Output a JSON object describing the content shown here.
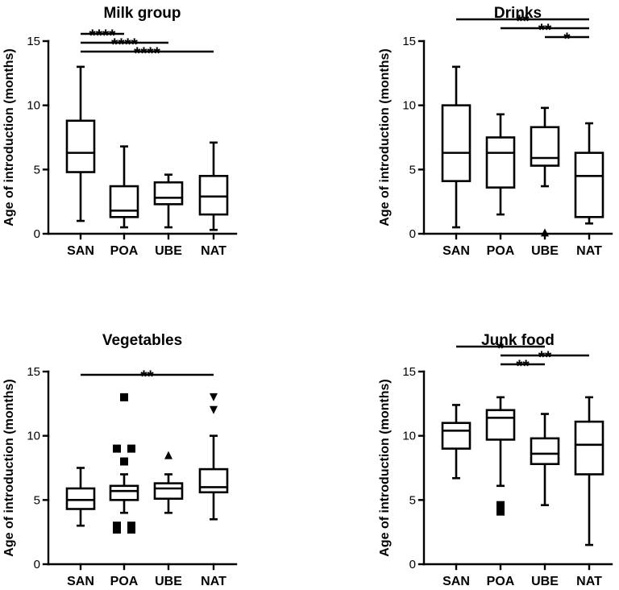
{
  "chart_data": [
    {
      "type": "boxplot",
      "title": "Milk group",
      "ylabel": "Age of introduction (months)",
      "categories": [
        "SAN",
        "POA",
        "UBE",
        "NAT"
      ],
      "ylim": [
        0,
        15
      ],
      "yticks": [
        0,
        5,
        10,
        15
      ],
      "boxes": [
        {
          "min": 1.0,
          "q1": 4.8,
          "median": 6.3,
          "q3": 8.8,
          "max": 13.0,
          "outliers": []
        },
        {
          "min": 0.5,
          "q1": 1.3,
          "median": 1.8,
          "q3": 3.7,
          "max": 6.8,
          "outliers": []
        },
        {
          "min": 0.5,
          "q1": 2.3,
          "median": 2.8,
          "q3": 4.0,
          "max": 4.6,
          "outliers": []
        },
        {
          "min": 0.3,
          "q1": 1.5,
          "median": 2.9,
          "q3": 4.5,
          "max": 7.1,
          "outliers": []
        }
      ],
      "significance": [
        {
          "from": 0,
          "to": 1,
          "label": "****",
          "level": 0
        },
        {
          "from": 0,
          "to": 2,
          "label": "****",
          "level": 1
        },
        {
          "from": 0,
          "to": 3,
          "label": "****",
          "level": 2
        }
      ]
    },
    {
      "type": "boxplot",
      "title": "Drinks",
      "ylabel": "Age of introduction (months)",
      "categories": [
        "SAN",
        "POA",
        "UBE",
        "NAT"
      ],
      "ylim": [
        0,
        15
      ],
      "yticks": [
        0,
        5,
        10,
        15
      ],
      "boxes": [
        {
          "min": 0.5,
          "q1": 4.1,
          "median": 6.3,
          "q3": 10.0,
          "max": 13.0,
          "outliers": []
        },
        {
          "min": 1.5,
          "q1": 3.6,
          "median": 6.3,
          "q3": 7.5,
          "max": 9.3,
          "outliers": []
        },
        {
          "min": 3.7,
          "q1": 5.3,
          "median": 5.9,
          "q3": 8.3,
          "max": 9.8,
          "outliers": [
            {
              "value": 0.1,
              "marker": "triangle-up"
            }
          ]
        },
        {
          "min": 0.8,
          "q1": 1.3,
          "median": 4.5,
          "q3": 6.3,
          "max": 8.6,
          "outliers": []
        }
      ],
      "significance": [
        {
          "from": 2,
          "to": 3,
          "label": "*",
          "level": 0
        },
        {
          "from": 1,
          "to": 3,
          "label": "**",
          "level": 1
        },
        {
          "from": 0,
          "to": 3,
          "label": "**",
          "level": 2
        }
      ]
    },
    {
      "type": "boxplot",
      "title": "Vegetables",
      "ylabel": "Age of introduction (months)",
      "categories": [
        "SAN",
        "POA",
        "UBE",
        "NAT"
      ],
      "ylim": [
        0,
        15
      ],
      "yticks": [
        0,
        5,
        10,
        15
      ],
      "boxes": [
        {
          "min": 3.0,
          "q1": 4.3,
          "median": 5.0,
          "q3": 5.9,
          "max": 7.5,
          "outliers": []
        },
        {
          "min": 4.0,
          "q1": 5.0,
          "median": 5.7,
          "q3": 6.1,
          "max": 7.0,
          "outliers": [
            {
              "value": 13.0,
              "marker": "square"
            },
            {
              "value": 9.0,
              "marker": "square",
              "offset": -1
            },
            {
              "value": 9.0,
              "marker": "square",
              "offset": 1
            },
            {
              "value": 8.0,
              "marker": "square"
            },
            {
              "value": 3.0,
              "marker": "square",
              "offset": -1
            },
            {
              "value": 3.0,
              "marker": "square",
              "offset": 1
            },
            {
              "value": 2.7,
              "marker": "square",
              "offset": -1
            },
            {
              "value": 2.7,
              "marker": "square",
              "offset": 1
            }
          ]
        },
        {
          "min": 4.0,
          "q1": 5.1,
          "median": 5.9,
          "q3": 6.3,
          "max": 7.0,
          "outliers": [
            {
              "value": 8.5,
              "marker": "triangle-up"
            }
          ]
        },
        {
          "min": 3.5,
          "q1": 5.6,
          "median": 6.0,
          "q3": 7.4,
          "max": 10.0,
          "outliers": [
            {
              "value": 13.0,
              "marker": "triangle-down"
            },
            {
              "value": 12.0,
              "marker": "triangle-down"
            }
          ]
        }
      ],
      "significance": [
        {
          "from": 0,
          "to": 3,
          "label": "**",
          "level": 0
        }
      ]
    },
    {
      "type": "boxplot",
      "title": "Junk food",
      "ylabel": "Age of introduction (months)",
      "categories": [
        "SAN",
        "POA",
        "UBE",
        "NAT"
      ],
      "ylim": [
        0,
        15
      ],
      "yticks": [
        0,
        5,
        10,
        15
      ],
      "boxes": [
        {
          "min": 6.7,
          "q1": 9.0,
          "median": 10.4,
          "q3": 11.0,
          "max": 12.4,
          "outliers": []
        },
        {
          "min": 6.1,
          "q1": 9.7,
          "median": 11.4,
          "q3": 12.0,
          "max": 13.0,
          "outliers": [
            {
              "value": 4.6,
              "marker": "square"
            },
            {
              "value": 4.1,
              "marker": "square"
            }
          ]
        },
        {
          "min": 4.6,
          "q1": 7.8,
          "median": 8.6,
          "q3": 9.8,
          "max": 11.7,
          "outliers": []
        },
        {
          "min": 1.5,
          "q1": 7.0,
          "median": 9.3,
          "q3": 11.1,
          "max": 13.0,
          "outliers": []
        }
      ],
      "significance": [
        {
          "from": 1,
          "to": 2,
          "label": "**",
          "level": 0
        },
        {
          "from": 1,
          "to": 3,
          "label": "**",
          "level": 1
        },
        {
          "from": 0,
          "to": 2,
          "label": "*",
          "level": 2
        }
      ]
    }
  ]
}
